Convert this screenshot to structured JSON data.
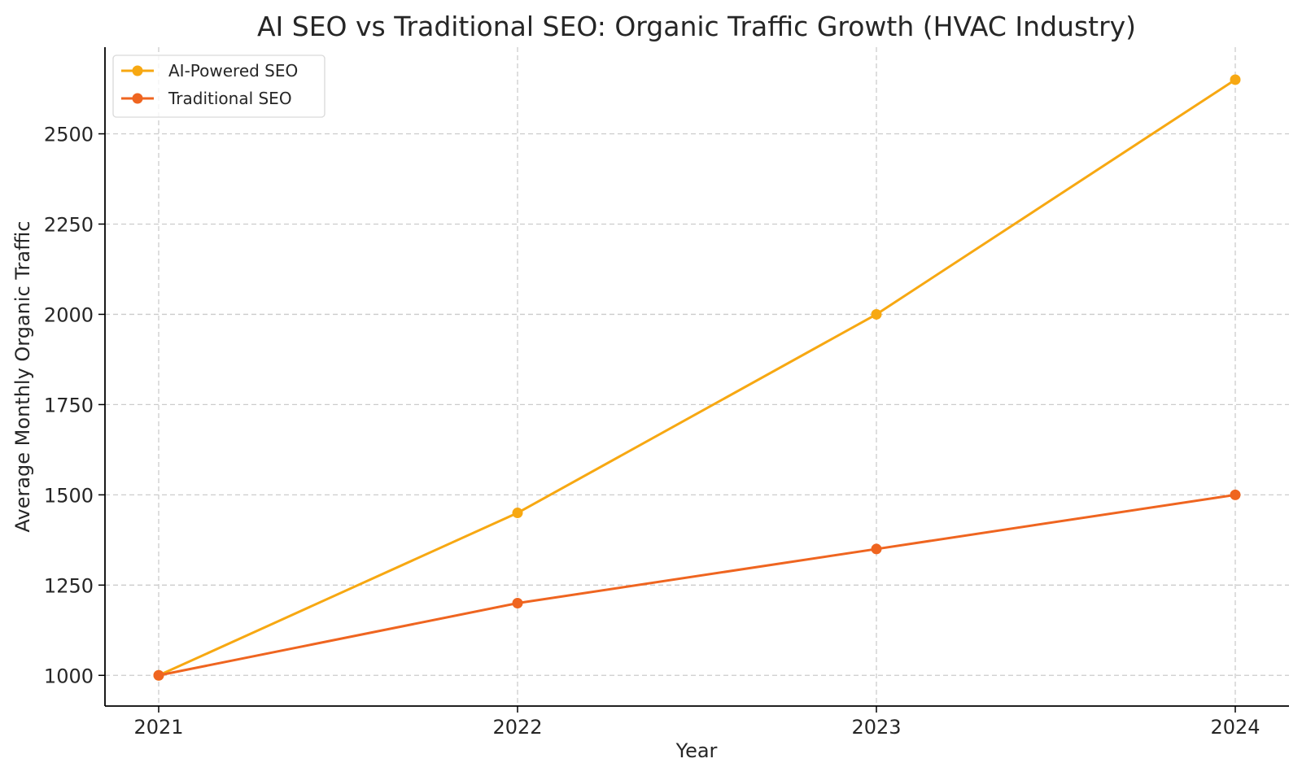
{
  "chart_data": {
    "type": "line",
    "title": "AI SEO vs Traditional SEO: Organic Traffic Growth (HVAC Industry)",
    "xlabel": "Year",
    "ylabel": "Average Monthly Organic Traffic",
    "x": [
      "2021",
      "2022",
      "2023",
      "2024"
    ],
    "yticks": [
      1000,
      1250,
      1500,
      1750,
      2000,
      2250,
      2500
    ],
    "ylim": [
      915,
      2740
    ],
    "grid": true,
    "legend_position": "top-left",
    "series": [
      {
        "name": "AI-Powered SEO",
        "values": [
          1000,
          1450,
          2000,
          2650
        ],
        "color": "#f7a812"
      },
      {
        "name": "Traditional SEO",
        "values": [
          1000,
          1200,
          1350,
          1500
        ],
        "color": "#ef6520"
      }
    ]
  }
}
